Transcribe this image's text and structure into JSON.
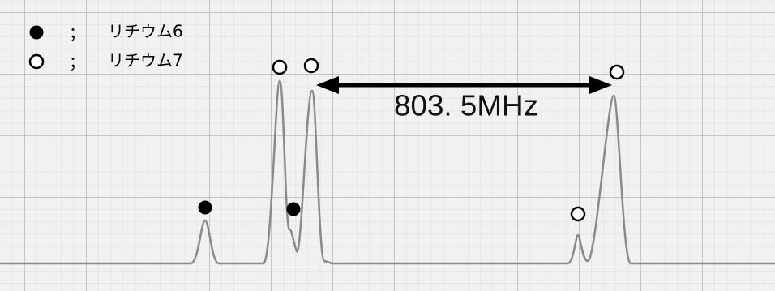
{
  "legend": [
    {
      "separator": "；",
      "label": "リチウム6"
    },
    {
      "separator": "；",
      "label": "リチウム7"
    }
  ],
  "annotation": "803. 5MHz"
}
